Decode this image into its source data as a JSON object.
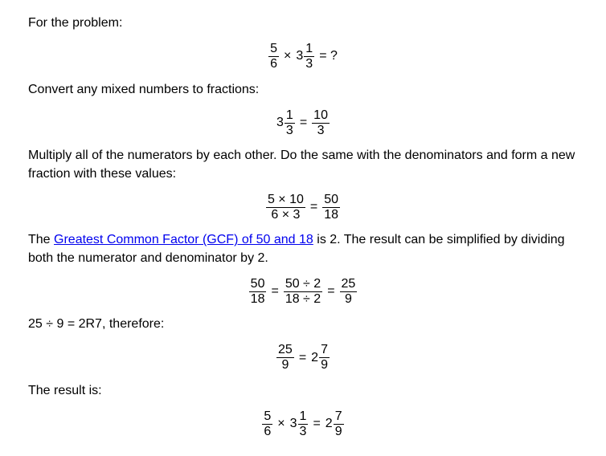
{
  "text": {
    "intro": "For the problem:",
    "convert": "Convert any mixed numbers to fractions:",
    "multiply": "Multiply all of the numerators by each other. Do the same with the denominators and form a new fraction with these values:",
    "the": "The ",
    "gcf_link": "Greatest Common Factor (GCF) of 50 and 18",
    "gcf_rest": " is 2. The result can be simplified by dividing both the numerator and denominator by 2.",
    "division": "25 ÷ 9 = 2R7, therefore:",
    "result": "The result is:"
  },
  "eq1": {
    "f1_num": "5",
    "f1_den": "6",
    "op1": "×",
    "w1": "3",
    "f2_num": "1",
    "f2_den": "3",
    "tail": "= ?"
  },
  "eq2": {
    "w1": "3",
    "f1_num": "1",
    "f1_den": "3",
    "eq": "=",
    "f2_num": "10",
    "f2_den": "3"
  },
  "eq3": {
    "f1_num": "5 × 10",
    "f1_den": "6 × 3",
    "eq": "=",
    "f2_num": "50",
    "f2_den": "18"
  },
  "eq4": {
    "f1_num": "50",
    "f1_den": "18",
    "eq1": "=",
    "f2_num": "50 ÷ 2",
    "f2_den": "18 ÷ 2",
    "eq2": "=",
    "f3_num": "25",
    "f3_den": "9"
  },
  "eq5": {
    "f1_num": "25",
    "f1_den": "9",
    "eq": "=",
    "w1": "2",
    "f2_num": "7",
    "f2_den": "9"
  },
  "eq6": {
    "f1_num": "5",
    "f1_den": "6",
    "op1": "×",
    "w1": "3",
    "f2_num": "1",
    "f2_den": "3",
    "eq": "=",
    "w2": "2",
    "f3_num": "7",
    "f3_den": "9"
  },
  "colors": {
    "text": "#000000",
    "background": "#ffffff",
    "link": "#0000ee"
  },
  "typography": {
    "font_family": "Arial, sans-serif",
    "font_size_pt": 12
  }
}
